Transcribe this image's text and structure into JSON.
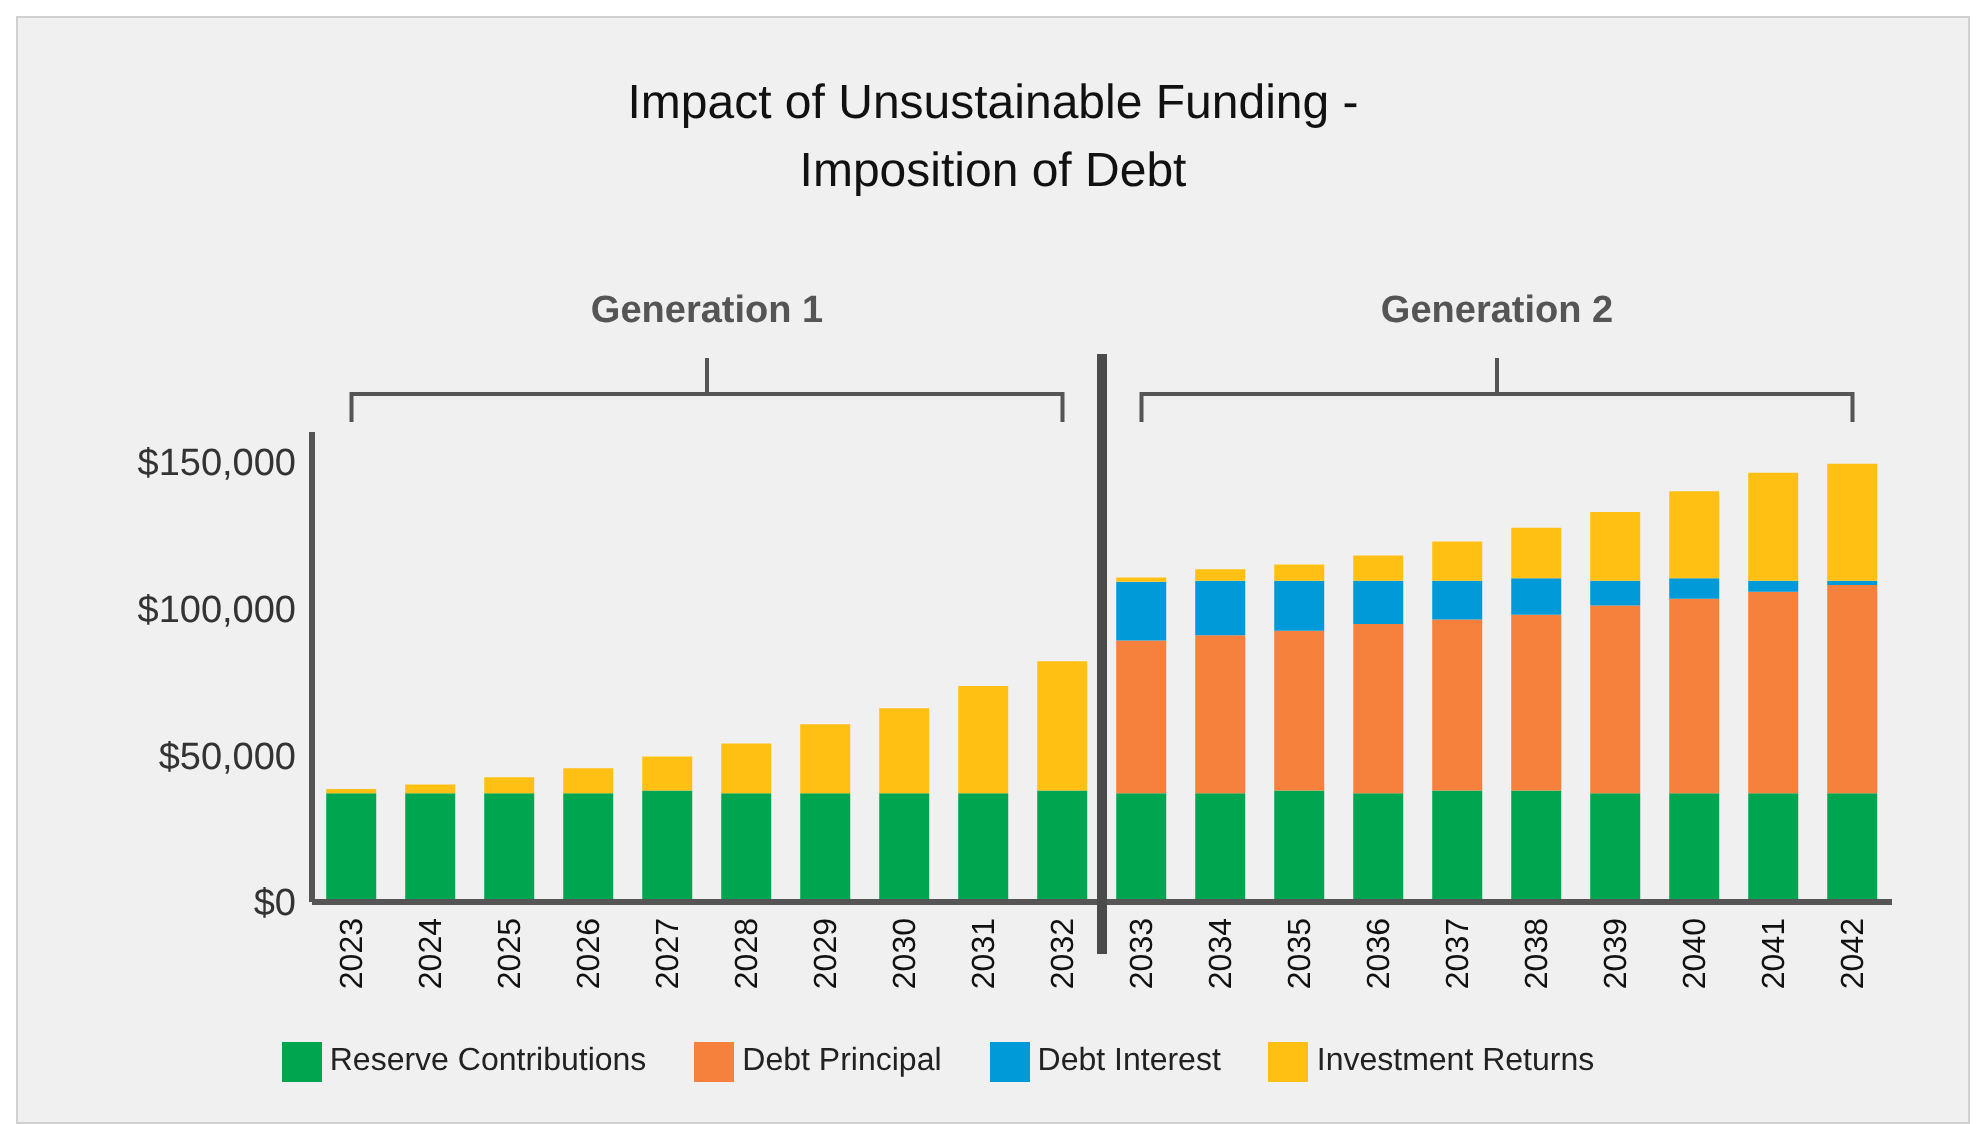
{
  "chart_data": {
    "type": "bar",
    "title": "Impact of Unsustainable Funding -\nImposition of Debt",
    "annotations": [
      "Generation 1",
      "Generation 2"
    ],
    "categories": [
      "2023",
      "2024",
      "2025",
      "2026",
      "2027",
      "2028",
      "2029",
      "2030",
      "2031",
      "2032",
      "2033",
      "2034",
      "2035",
      "2036",
      "2037",
      "2038",
      "2039",
      "2040",
      "2041",
      "2042"
    ],
    "stacked": true,
    "series": [
      {
        "name": "Reserve Contributions",
        "color": "#00a64f",
        "values": [
          37000,
          37000,
          37000,
          37000,
          38000,
          37000,
          37000,
          37000,
          37000,
          38000,
          37000,
          37000,
          38000,
          37000,
          38000,
          38000,
          37000,
          37000,
          37000,
          37000
        ]
      },
      {
        "name": "Debt Principal",
        "color": "#f5813c",
        "values": [
          0,
          0,
          0,
          0,
          0,
          0,
          0,
          0,
          0,
          0,
          52000,
          53800,
          54300,
          57600,
          58200,
          59800,
          63900,
          66200,
          68600,
          70900
        ]
      },
      {
        "name": "Debt Interest",
        "color": "#009ad8",
        "values": [
          0,
          0,
          0,
          0,
          0,
          0,
          0,
          0,
          0,
          0,
          20000,
          18600,
          17100,
          14800,
          13200,
          12400,
          8500,
          7000,
          3800,
          1500
        ]
      },
      {
        "name": "Investment Returns",
        "color": "#ffc013",
        "values": [
          1500,
          3000,
          5500,
          8500,
          11500,
          17000,
          23500,
          29000,
          36500,
          44000,
          1500,
          3900,
          5500,
          8600,
          13300,
          17200,
          23400,
          29600,
          36700,
          39800
        ]
      }
    ],
    "ylim": [
      0,
      160000
    ],
    "yticks": [
      {
        "value": 0,
        "label": "$0"
      },
      {
        "value": 50000,
        "label": "$50,000"
      },
      {
        "value": 100000,
        "label": "$100,000"
      },
      {
        "value": 150000,
        "label": "$150,000"
      }
    ],
    "grid": false,
    "legend": "bottom"
  }
}
